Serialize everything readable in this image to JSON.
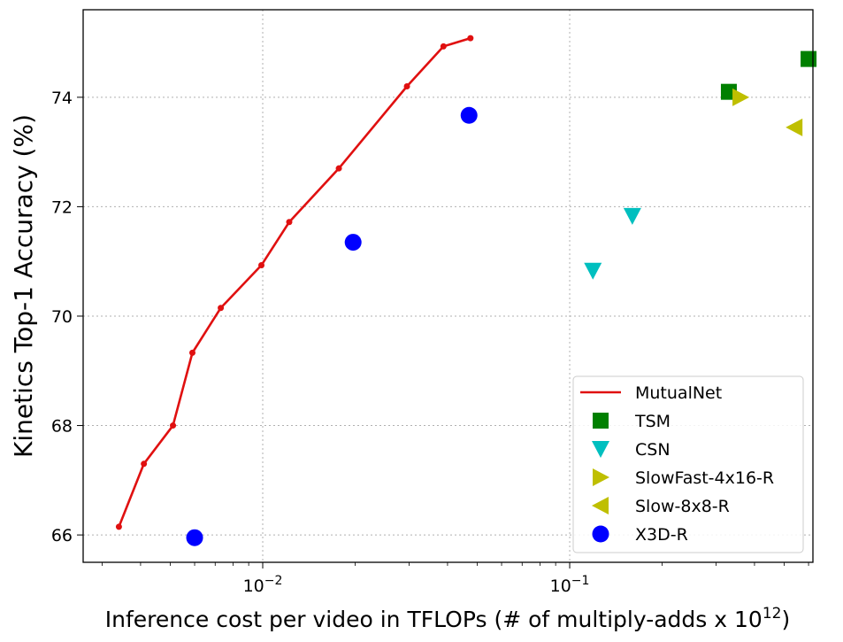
{
  "chart_data": {
    "type": "scatter",
    "title": "",
    "xlabel": "Inference cost per video in TFLOPs (# of multiply-adds x 10",
    "xlabel_superscript": "12",
    "xlabel_suffix": ")",
    "ylabel": "Kinetics Top-1 Accuracy (%)",
    "xscale": "log",
    "xlim": [
      0.0026,
      0.62
    ],
    "ylim": [
      65.5,
      75.6
    ],
    "x_ticks": [
      {
        "value": 0.01,
        "base": "10",
        "exp": "−2"
      },
      {
        "value": 0.1,
        "base": "10",
        "exp": "−1"
      }
    ],
    "y_ticks": [
      66,
      68,
      70,
      72,
      74
    ],
    "y_tick_labels": [
      "66",
      "68",
      "70",
      "72",
      "74"
    ],
    "grid": true,
    "legend_position": "lower-right",
    "series": [
      {
        "name": "MutualNet",
        "kind": "line",
        "color": "#e01010",
        "x": [
          0.0034,
          0.0041,
          0.0051,
          0.0059,
          0.0073,
          0.0099,
          0.0122,
          0.0177,
          0.0295,
          0.0388,
          0.0475
        ],
        "y": [
          66.15,
          67.3,
          68.0,
          69.33,
          70.15,
          70.93,
          71.72,
          72.7,
          74.2,
          74.93,
          75.08
        ]
      },
      {
        "name": "TSM",
        "kind": "square",
        "color": "#008000",
        "x": [
          0.33,
          0.6
        ],
        "y": [
          74.1,
          74.7
        ]
      },
      {
        "name": "CSN",
        "kind": "triangle-down",
        "color": "#00bfbf",
        "x": [
          0.119,
          0.16
        ],
        "y": [
          70.83,
          71.83
        ]
      },
      {
        "name": "SlowFast-4x16-R",
        "kind": "triangle-right",
        "color": "#bfbf00",
        "x": [
          0.36
        ],
        "y": [
          74.0
        ]
      },
      {
        "name": "Slow-8x8-R",
        "kind": "triangle-left",
        "color": "#bfbf00",
        "x": [
          0.54
        ],
        "y": [
          73.45
        ]
      },
      {
        "name": "X3D-R",
        "kind": "circle",
        "color": "#0000ff",
        "x": [
          0.006,
          0.0197,
          0.047
        ],
        "y": [
          65.95,
          71.35,
          73.67
        ]
      }
    ]
  }
}
